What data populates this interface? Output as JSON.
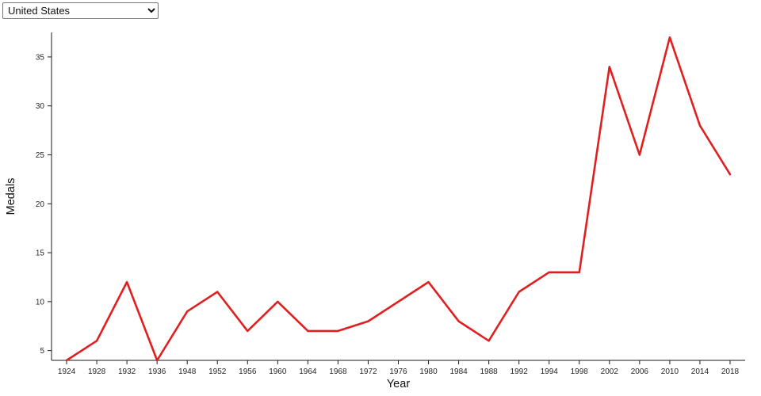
{
  "controls": {
    "country_select": {
      "value": "United States",
      "options": [
        "United States"
      ]
    }
  },
  "chart_data": {
    "type": "line",
    "title": "",
    "xlabel": "Year",
    "ylabel": "Medals",
    "x": [
      "1924",
      "1928",
      "1932",
      "1936",
      "1948",
      "1952",
      "1956",
      "1960",
      "1964",
      "1968",
      "1972",
      "1976",
      "1980",
      "1984",
      "1988",
      "1992",
      "1994",
      "1998",
      "2002",
      "2006",
      "2010",
      "2014",
      "2018"
    ],
    "series": [
      {
        "name": "United States",
        "values": [
          4,
          6,
          12,
          4,
          9,
          11,
          7,
          10,
          7,
          7,
          8,
          10,
          12,
          8,
          6,
          11,
          13,
          13,
          34,
          25,
          37,
          28,
          23
        ]
      }
    ],
    "ylim": [
      4,
      37.5
    ],
    "yticks": [
      5,
      10,
      15,
      20,
      25,
      30,
      35
    ],
    "grid": false,
    "legend_position": "none",
    "colors": {
      "line": "#e02020",
      "axis": "#1a1a1a",
      "tick_text": "#262626"
    }
  }
}
